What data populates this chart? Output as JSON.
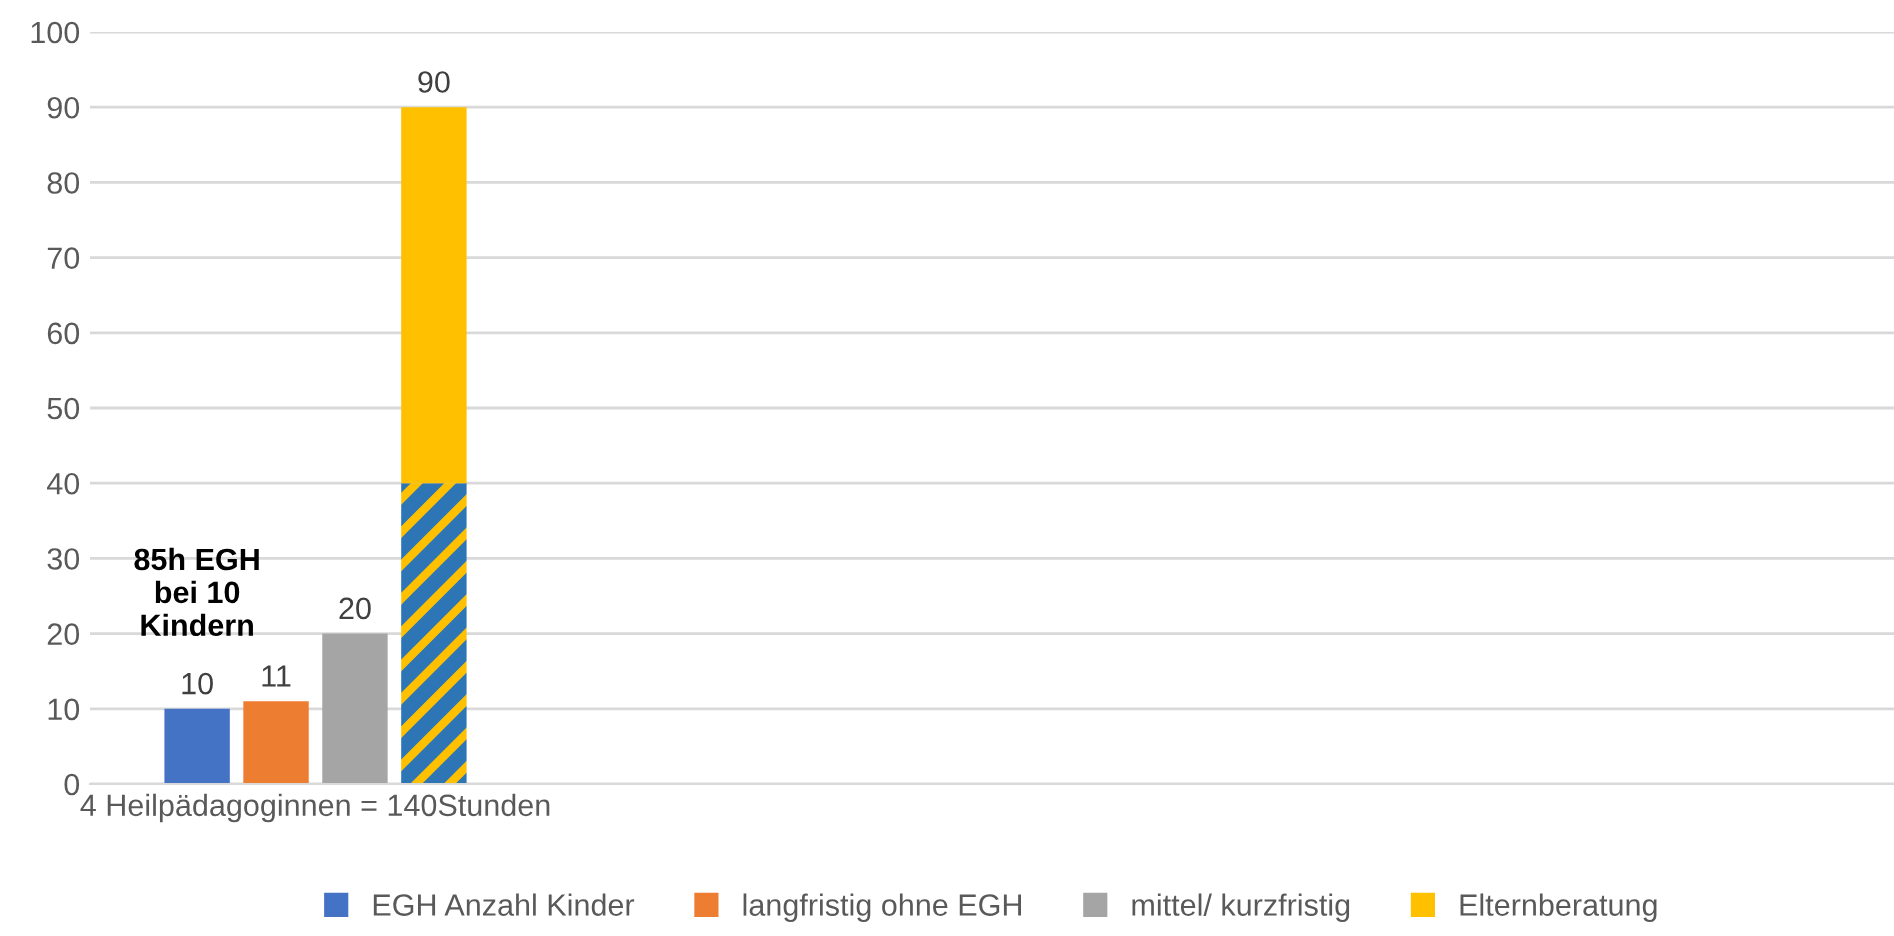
{
  "chart_data": {
    "type": "bar",
    "categories": [
      "4 Heilpädagoginnen = 140Stunden",
      null,
      null,
      null
    ],
    "series": [
      {
        "name": "EGH Anzahl Kinder",
        "color": "#4472c4",
        "values": [
          10,
          null,
          null,
          null
        ],
        "value_labels": [
          "10",
          null,
          null,
          null
        ]
      },
      {
        "name": "langfristig ohne EGH",
        "color": "#ed7d31",
        "values": [
          11,
          null,
          null,
          null
        ],
        "value_labels": [
          "11",
          null,
          null,
          null
        ]
      },
      {
        "name": "mittel/ kurzfristig",
        "color": "#a5a5a5",
        "values": [
          20,
          null,
          null,
          null
        ],
        "value_labels": [
          "20",
          null,
          null,
          null
        ]
      },
      {
        "color": "#2e75b6",
        "values": [
          40,
          null,
          null,
          null
        ]
      },
      {
        "name": "Elternberatung",
        "color": "#ffc000",
        "values": [
          50,
          null,
          null,
          null
        ],
        "base": [
          40,
          null,
          null,
          null
        ],
        "value_labels": [
          "90",
          null,
          null,
          null
        ]
      }
    ],
    "ylim": [
      0,
      100
    ],
    "yticks": [
      0,
      10,
      20,
      30,
      40,
      50,
      60,
      70,
      80,
      90,
      100
    ],
    "grid": "y",
    "legend": "bottom",
    "annotations": [
      "85h EGH\nbei 10\nKindern"
    ]
  }
}
